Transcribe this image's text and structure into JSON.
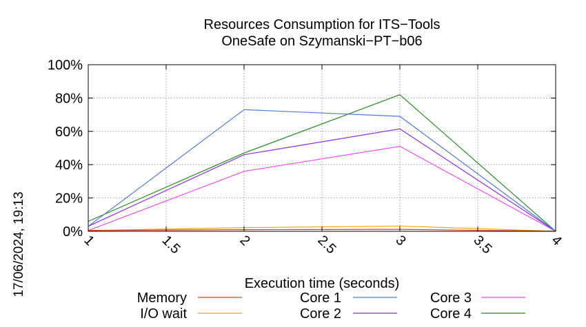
{
  "chart_data": {
    "type": "line",
    "title": "Resources Consumption for ITS−Tools",
    "subtitle": "OneSafe on Szymanski−PT−b06",
    "xlabel": "Execution time (seconds)",
    "ylabel": "",
    "timestamp": "17/06/2024, 19:13",
    "xlim": [
      1,
      4
    ],
    "ylim": [
      0,
      100
    ],
    "x_ticks": [
      1,
      1.5,
      2,
      2.5,
      3,
      3.5,
      4
    ],
    "x_tick_labels": [
      "1",
      "1.5",
      "2",
      "2.5",
      "3",
      "3.5",
      "4"
    ],
    "y_ticks": [
      0,
      20,
      40,
      60,
      80,
      100
    ],
    "y_tick_labels": [
      "0%",
      "20%",
      "40%",
      "60%",
      "80%",
      "100%"
    ],
    "grid": true,
    "legend_position": "bottom",
    "x": [
      1,
      2,
      3,
      4
    ],
    "series": [
      {
        "name": "Memory",
        "color": "#e8341c",
        "values": [
          0.5,
          1.0,
          1.2,
          0
        ]
      },
      {
        "name": "I/O wait",
        "color": "#f5a300",
        "values": [
          0.5,
          2.2,
          3.2,
          0
        ]
      },
      {
        "name": "Core 1",
        "color": "#4d78d8",
        "values": [
          3,
          73,
          69,
          0
        ]
      },
      {
        "name": "Core 2",
        "color": "#8a2be2",
        "values": [
          3,
          46,
          61.5,
          0
        ]
      },
      {
        "name": "Core 3",
        "color": "#f14ef1",
        "values": [
          0.5,
          36,
          51,
          0
        ]
      },
      {
        "name": "Core 4",
        "color": "#1f8a1f",
        "values": [
          6,
          47,
          82,
          0
        ]
      }
    ]
  }
}
